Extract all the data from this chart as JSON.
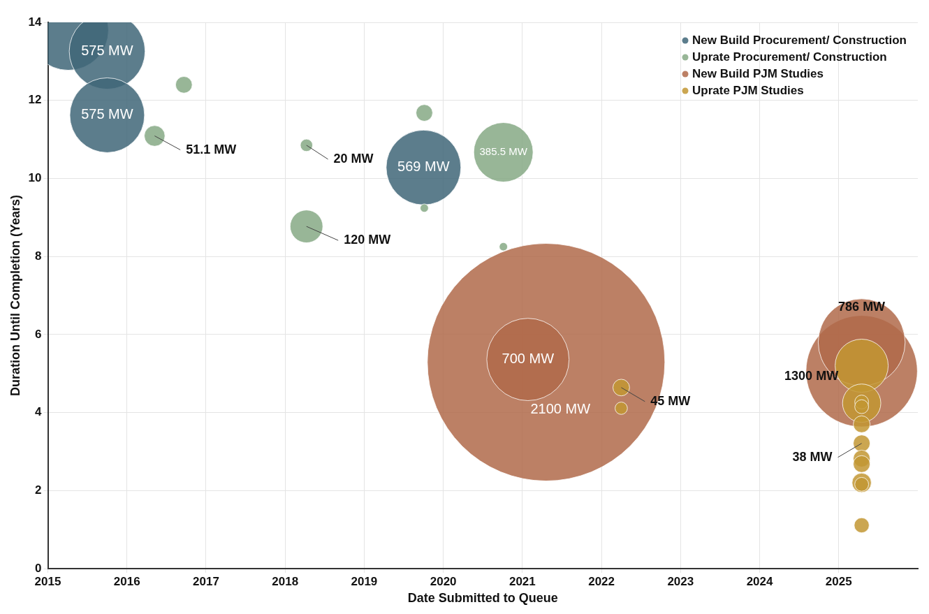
{
  "chart_data": {
    "type": "bubble",
    "xlabel": "Date Submitted to Queue",
    "ylabel": "Duration Until Completion (Years)",
    "xlim": [
      2015,
      2026
    ],
    "xticks": [
      2015,
      2016,
      2017,
      2018,
      2019,
      2020,
      2021,
      2022,
      2023,
      2024,
      2025
    ],
    "ylim": [
      0,
      14
    ],
    "yticks": [
      0,
      2,
      4,
      6,
      8,
      10,
      12,
      14
    ],
    "grid": true,
    "legend": "top right",
    "series": [
      {
        "name": "New Build Procurement/ Construction",
        "color": "#3f6678",
        "x": [
          2015.26,
          2015.75,
          2015.75,
          2019.75
        ],
        "values": [
          13.8,
          13.26,
          11.62,
          10.28
        ],
        "sizes": [
          0.114,
          0.102,
          0.099,
          0.099
        ]
      },
      {
        "name": "Uprate Procurement/ Construction",
        "color": "#86a985",
        "x": [
          2016.72,
          2016.35,
          2018.27,
          2018.27,
          2019.76,
          2019.76,
          2020.76,
          2020.76
        ],
        "values": [
          12.4,
          11.09,
          10.85,
          8.77,
          11.68,
          9.24,
          10.67,
          8.25
        ],
        "sizes": [
          0.0049,
          0.0076,
          0.0027,
          0.019,
          0.0049,
          0.0012,
          0.0625,
          0.0012
        ]
      },
      {
        "name": "New Build PJM Studies",
        "color": "#b06a4a",
        "x": [
          2021.3,
          2021.07,
          2025.29,
          2025.29
        ],
        "values": [
          5.29,
          5.36,
          5.06,
          5.8
        ],
        "sizes": [
          1,
          0.12,
          0.22,
          0.134
        ]
      },
      {
        "name": "Uprate PJM Studies",
        "color": "#c29633",
        "x": [
          2022.25,
          2022.25,
          2025.29,
          2025.29,
          2025.29,
          2025.29,
          2025.29,
          2025.29,
          2025.29,
          2025.29,
          2025.29,
          2025.29,
          2025.29
        ],
        "values": [
          4.64,
          4.11,
          5.2,
          4.24,
          4.27,
          4.15,
          3.7,
          3.21,
          2.82,
          2.68,
          2.2,
          2.16,
          1.11
        ],
        "sizes": [
          0.0049,
          0.0027,
          0.05,
          0.026,
          0.0034,
          0.0034,
          0.005,
          0.005,
          0.005,
          0.005,
          0.0066,
          0.0034,
          0.004
        ]
      }
    ],
    "annotations": [
      {
        "text": "575 MW",
        "x": 2015.75,
        "y": 13.26
      },
      {
        "text": "575 MW",
        "x": 2015.75,
        "y": 11.62
      },
      {
        "text": "51.1 MW",
        "x": 2016.35,
        "y": 11.09
      },
      {
        "text": "20 MW",
        "x": 2018.27,
        "y": 10.85
      },
      {
        "text": "120 MW",
        "x": 2018.27,
        "y": 8.77
      },
      {
        "text": "569 MW",
        "x": 2019.75,
        "y": 10.28
      },
      {
        "text": "385.5 MW",
        "x": 2020.76,
        "y": 10.67
      },
      {
        "text": "700 MW",
        "x": 2021.07,
        "y": 5.36
      },
      {
        "text": "2100 MW",
        "x": 2021.3,
        "y": 5.29
      },
      {
        "text": "45 MW",
        "x": 2022.25,
        "y": 4.64
      },
      {
        "text": "786 MW",
        "x": 2025.29,
        "y": 5.8
      },
      {
        "text": "1300 MW",
        "x": 2025.29,
        "y": 5.06
      },
      {
        "text": "38 MW",
        "x": 2025.29,
        "y": 3.21
      }
    ]
  }
}
